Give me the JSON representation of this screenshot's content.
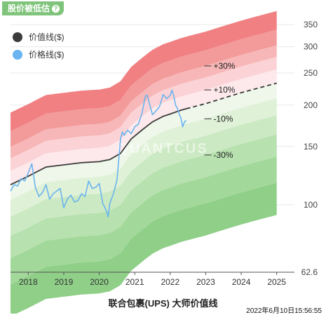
{
  "badge": {
    "label": "股价被低估",
    "help_icon": "question-icon",
    "color": "#7fc47a"
  },
  "legend": [
    {
      "name": "价值线($)",
      "color": "#3b3b3b"
    },
    {
      "name": "价格线($)",
      "color": "#6ab4ef"
    }
  ],
  "footer": {
    "title": "联合包裹(UPS) 大师价值线",
    "timestamp": "2022年6月10日15:56:55"
  },
  "watermark": "QUANTCUS",
  "chart_data": {
    "type": "area",
    "xlim": [
      2017.5,
      2025.5
    ],
    "x_ticks": [
      "2018",
      "2019",
      "2020",
      "2021",
      "2022",
      "2023",
      "2024",
      "2025"
    ],
    "x_tick_values": [
      2018,
      2019,
      2020,
      2021,
      2022,
      2023,
      2024,
      2025
    ],
    "y_scale": "log",
    "ylim": [
      62.6,
      350
    ],
    "y_ticks": [
      "62.6",
      "100",
      "150",
      "200",
      "250",
      "300",
      "350"
    ],
    "y_tick_values": [
      62.6,
      100,
      150,
      200,
      250,
      300,
      350
    ],
    "band_labels": [
      {
        "text": "+30%",
        "factor": 1.3
      },
      {
        "text": "+10%",
        "factor": 1.1
      },
      {
        "text": "-10%",
        "factor": 0.9
      },
      {
        "text": "-30%",
        "factor": 0.7
      }
    ],
    "band_factors": [
      0.4,
      0.5,
      0.6,
      0.7,
      0.8,
      0.9,
      1.0,
      1.1,
      1.2,
      1.3,
      1.45,
      1.65
    ],
    "band_colors": [
      "#8fcf88",
      "#a3d89b",
      "#b7e1ae",
      "#cbe9c2",
      "#dff1d7",
      "#eef7ea",
      "#fde9ec",
      "#fbd2d5",
      "#f7b7b8",
      "#f39a9a",
      "#f18082"
    ],
    "value_line": {
      "x": [
        2017.5,
        2018.0,
        2018.5,
        2019.0,
        2019.5,
        2020.0,
        2020.3,
        2020.6,
        2020.9,
        2021.2,
        2021.5,
        2021.8,
        2022.0,
        2022.3,
        2022.45
      ],
      "y": [
        115,
        122,
        130,
        132,
        134,
        135,
        137,
        143,
        158,
        168,
        178,
        185,
        188,
        193,
        195
      ]
    },
    "projection": {
      "x": [
        2022.45,
        2023.0,
        2024.0,
        2025.0
      ],
      "y": [
        195,
        202,
        218,
        233
      ]
    },
    "price_line": {
      "x": [
        2017.5,
        2017.6,
        2017.7,
        2017.8,
        2017.9,
        2018.0,
        2018.1,
        2018.2,
        2018.3,
        2018.4,
        2018.5,
        2018.6,
        2018.7,
        2018.8,
        2018.9,
        2019.0,
        2019.1,
        2019.2,
        2019.3,
        2019.4,
        2019.5,
        2019.6,
        2019.7,
        2019.8,
        2019.9,
        2020.0,
        2020.1,
        2020.2,
        2020.25,
        2020.3,
        2020.4,
        2020.5,
        2020.6,
        2020.65,
        2020.7,
        2020.8,
        2020.9,
        2021.0,
        2021.1,
        2021.2,
        2021.3,
        2021.35,
        2021.4,
        2021.5,
        2021.6,
        2021.7,
        2021.8,
        2021.9,
        2022.0,
        2022.05,
        2022.1,
        2022.15,
        2022.2,
        2022.25,
        2022.3,
        2022.35,
        2022.4,
        2022.45
      ],
      "y": [
        110,
        115,
        114,
        120,
        118,
        125,
        133,
        113,
        106,
        109,
        115,
        104,
        108,
        110,
        112,
        98,
        104,
        107,
        102,
        103,
        108,
        106,
        118,
        112,
        113,
        116,
        101,
        96,
        92,
        101,
        108,
        119,
        158,
        166,
        162,
        168,
        164,
        172,
        175,
        188,
        213,
        214,
        205,
        187,
        192,
        198,
        215,
        209,
        214,
        222,
        213,
        200,
        196,
        188,
        183,
        172,
        178,
        180
      ]
    }
  }
}
